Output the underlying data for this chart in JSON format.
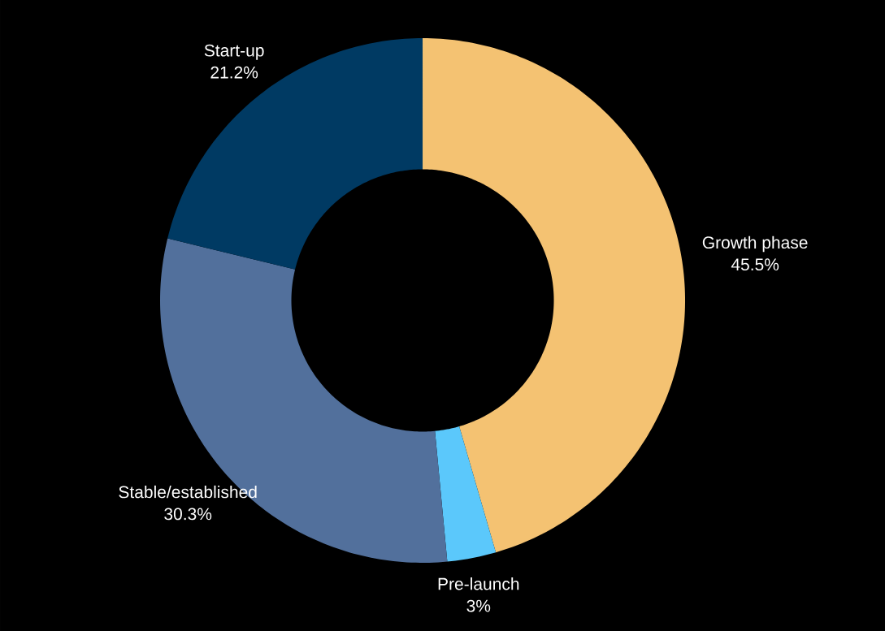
{
  "chart_data": {
    "type": "donut",
    "categories": [
      "Growth phase",
      "Pre-launch",
      "Stable/established",
      "Start-up"
    ],
    "values": [
      45.5,
      3,
      30.3,
      21.2
    ],
    "value_labels": [
      "45.5%",
      "3%",
      "30.3%",
      "21.2%"
    ],
    "colors": [
      "#f4c272",
      "#5bc8fb",
      "#52709c",
      "#003a63"
    ]
  }
}
